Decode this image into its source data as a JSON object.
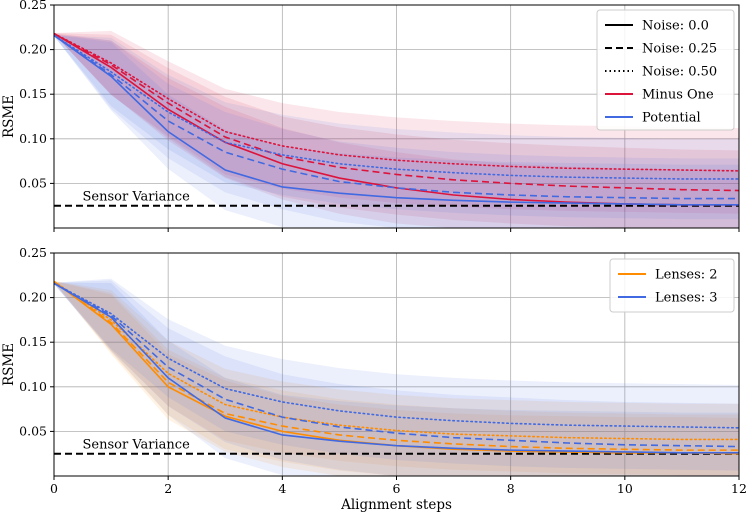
{
  "chart_data": [
    {
      "type": "line",
      "title": "",
      "xlabel": "",
      "ylabel": "RSME",
      "xlim": [
        0,
        12
      ],
      "ylim": [
        0,
        0.25
      ],
      "xticks": [
        0,
        2,
        4,
        6,
        8,
        10,
        12
      ],
      "yticks": [
        0.05,
        0.1,
        0.15,
        0.2,
        0.25
      ],
      "ytick_labels": [
        "0.05",
        "0.10",
        "0.15",
        "0.20",
        "0.25"
      ],
      "show_xtick_labels": false,
      "grid": true,
      "legend_position": "top-right",
      "legend": [
        {
          "label": "Noise: 0.0",
          "color": "#000000",
          "dash": "solid"
        },
        {
          "label": "Noise: 0.25",
          "color": "#000000",
          "dash": "dashed"
        },
        {
          "label": "Noise: 0.50",
          "color": "#000000",
          "dash": "dotted"
        },
        {
          "label": "Minus One",
          "color": "#dc143c",
          "dash": "solid"
        },
        {
          "label": "Potential",
          "color": "#4169e1",
          "dash": "solid"
        }
      ],
      "annotation": {
        "text": "Sensor Variance",
        "value": 0.025
      },
      "x": [
        0,
        1,
        2,
        3,
        4,
        5,
        6,
        7,
        8,
        9,
        10,
        11,
        12
      ],
      "series": [
        {
          "name": "Minus One, Noise 0.0",
          "color": "#dc143c",
          "dash": "solid",
          "values": [
            0.218,
            0.18,
            0.133,
            0.096,
            0.072,
            0.056,
            0.045,
            0.037,
            0.032,
            0.029,
            0.027,
            0.026,
            0.026
          ],
          "band": [
            0.025,
            0.04
          ]
        },
        {
          "name": "Minus One, Noise 0.25",
          "color": "#dc143c",
          "dash": "dashed",
          "values": [
            0.218,
            0.183,
            0.14,
            0.102,
            0.08,
            0.068,
            0.06,
            0.054,
            0.05,
            0.047,
            0.045,
            0.043,
            0.042
          ],
          "band": [
            0.028,
            0.045
          ]
        },
        {
          "name": "Minus One, Noise 0.50",
          "color": "#dc143c",
          "dash": "dotted",
          "values": [
            0.218,
            0.185,
            0.145,
            0.108,
            0.092,
            0.082,
            0.076,
            0.072,
            0.069,
            0.067,
            0.066,
            0.065,
            0.064
          ],
          "band": [
            0.03,
            0.048
          ]
        },
        {
          "name": "Potential, Noise 0.0",
          "color": "#4169e1",
          "dash": "solid",
          "values": [
            0.216,
            0.17,
            0.108,
            0.065,
            0.046,
            0.039,
            0.034,
            0.031,
            0.029,
            0.028,
            0.027,
            0.026,
            0.026
          ],
          "band": [
            0.035,
            0.045
          ]
        },
        {
          "name": "Potential, Noise 0.25",
          "color": "#4169e1",
          "dash": "dashed",
          "values": [
            0.216,
            0.172,
            0.12,
            0.085,
            0.066,
            0.052,
            0.045,
            0.04,
            0.037,
            0.035,
            0.034,
            0.033,
            0.033
          ],
          "band": [
            0.035,
            0.045
          ]
        },
        {
          "name": "Potential, Noise 0.50",
          "color": "#4169e1",
          "dash": "dotted",
          "values": [
            0.216,
            0.175,
            0.13,
            0.096,
            0.082,
            0.072,
            0.066,
            0.062,
            0.059,
            0.057,
            0.056,
            0.055,
            0.055
          ],
          "band": [
            0.035,
            0.045
          ]
        }
      ]
    },
    {
      "type": "line",
      "title": "",
      "xlabel": "Alignment steps",
      "ylabel": "RSME",
      "xlim": [
        0,
        12
      ],
      "ylim": [
        0,
        0.25
      ],
      "xticks": [
        0,
        2,
        4,
        6,
        8,
        10,
        12
      ],
      "xtick_labels": [
        "0",
        "2",
        "4",
        "6",
        "8",
        "10",
        "12"
      ],
      "yticks": [
        0.05,
        0.1,
        0.15,
        0.2,
        0.25
      ],
      "ytick_labels": [
        "0.05",
        "0.10",
        "0.15",
        "0.20",
        "0.25"
      ],
      "show_xtick_labels": true,
      "grid": true,
      "legend_position": "top-right",
      "legend": [
        {
          "label": "Lenses: 2",
          "color": "#ff8c00",
          "dash": "solid"
        },
        {
          "label": "Lenses: 3",
          "color": "#4169e1",
          "dash": "solid"
        }
      ],
      "annotation": {
        "text": "Sensor Variance",
        "value": 0.025
      },
      "x": [
        0,
        1,
        2,
        3,
        4,
        5,
        6,
        7,
        8,
        9,
        10,
        11,
        12
      ],
      "series": [
        {
          "name": "Lenses 2, Noise 0.0",
          "color": "#ff8c00",
          "dash": "solid",
          "values": [
            0.218,
            0.17,
            0.1,
            0.067,
            0.05,
            0.04,
            0.034,
            0.03,
            0.028,
            0.027,
            0.026,
            0.026,
            0.025
          ],
          "band": [
            0.03,
            0.04
          ]
        },
        {
          "name": "Lenses 2, Noise 0.25",
          "color": "#ff8c00",
          "dash": "dashed",
          "values": [
            0.218,
            0.172,
            0.105,
            0.07,
            0.056,
            0.046,
            0.04,
            0.036,
            0.033,
            0.031,
            0.03,
            0.029,
            0.029
          ],
          "band": [
            0.03,
            0.04
          ]
        },
        {
          "name": "Lenses 2, Noise 0.50",
          "color": "#ff8c00",
          "dash": "dotted",
          "values": [
            0.218,
            0.175,
            0.115,
            0.08,
            0.066,
            0.057,
            0.051,
            0.047,
            0.045,
            0.043,
            0.042,
            0.041,
            0.041
          ],
          "band": [
            0.03,
            0.04
          ]
        },
        {
          "name": "Lenses 3, Noise 0.0",
          "color": "#4169e1",
          "dash": "solid",
          "values": [
            0.216,
            0.178,
            0.11,
            0.065,
            0.046,
            0.039,
            0.034,
            0.031,
            0.029,
            0.028,
            0.027,
            0.026,
            0.026
          ],
          "band": [
            0.035,
            0.045
          ]
        },
        {
          "name": "Lenses 3, Noise 0.25",
          "color": "#4169e1",
          "dash": "dashed",
          "values": [
            0.216,
            0.18,
            0.122,
            0.086,
            0.066,
            0.055,
            0.048,
            0.043,
            0.04,
            0.037,
            0.035,
            0.034,
            0.033
          ],
          "band": [
            0.035,
            0.048
          ]
        },
        {
          "name": "Lenses 3, Noise 0.50",
          "color": "#4169e1",
          "dash": "dotted",
          "values": [
            0.216,
            0.182,
            0.132,
            0.098,
            0.083,
            0.073,
            0.066,
            0.062,
            0.059,
            0.057,
            0.056,
            0.055,
            0.054
          ],
          "band": [
            0.035,
            0.048
          ]
        }
      ]
    }
  ]
}
